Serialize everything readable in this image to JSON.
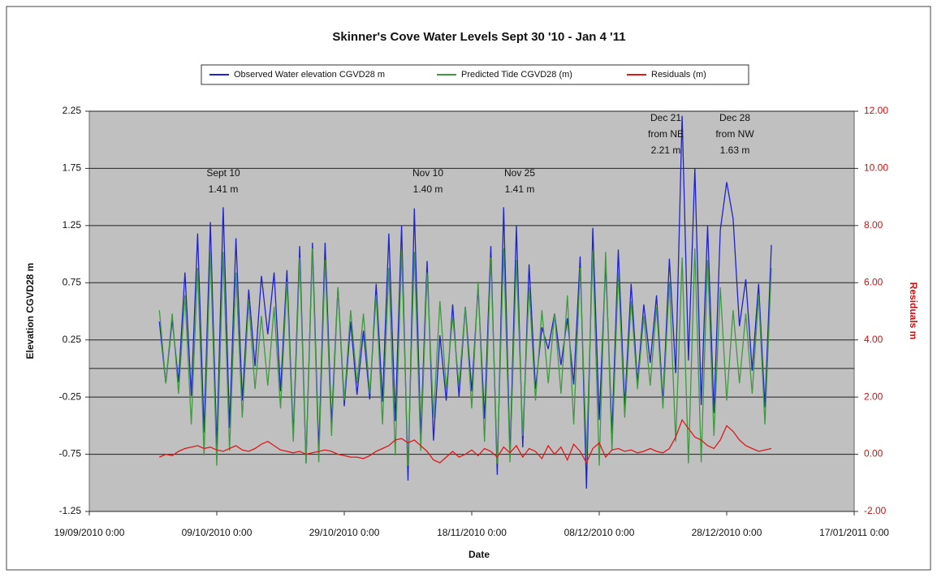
{
  "chart_data": {
    "type": "line",
    "title": "Skinner's Cove  Water Levels Sept 30 '10 - Jan 4 '11",
    "x_label": "Date",
    "y_label": "Elevation CGVD28 m",
    "y2_label": "Residuals m",
    "grid": true,
    "xlim": [
      "19/09/2010 0:00",
      "17/01/2011 0:00"
    ],
    "xticks": [
      "19/09/2010 0:00",
      "09/10/2010 0:00",
      "29/10/2010 0:00",
      "18/11/2010 0:00",
      "08/12/2010 0:00",
      "28/12/2010 0:00",
      "17/01/2011 0:00"
    ],
    "ylim": [
      -1.25,
      2.25
    ],
    "yticks": [
      -1.25,
      -0.75,
      -0.25,
      0.25,
      0.75,
      1.25,
      1.75,
      2.25
    ],
    "y2lim": [
      -2,
      12
    ],
    "y2ticks": [
      {
        "value": -2,
        "label": "-2.00"
      },
      {
        "value": 0,
        "label": "0.00"
      },
      {
        "value": 2,
        "label": "2.00"
      },
      {
        "value": 4,
        "label": "4.00"
      },
      {
        "value": 6,
        "label": "6.00"
      },
      {
        "value": 8,
        "label": "8.00"
      },
      {
        "value": 10,
        "label": "10.00"
      },
      {
        "value": 12,
        "label": "12.00"
      }
    ],
    "annotations": [
      [
        "Sept 10",
        "1.41 m"
      ],
      [
        "Nov 10",
        "1.40 m"
      ],
      [
        "Nov 25",
        "1.41 m"
      ],
      [
        "Dec 21",
        "from NE",
        "2.21 m"
      ],
      [
        "Dec 28",
        "from NW",
        "1.63 m"
      ]
    ],
    "x": [
      "30/09/2010 0:00",
      "01/10/2010 0:00",
      "02/10/2010 0:00",
      "03/10/2010 0:00",
      "04/10/2010 0:00",
      "05/10/2010 0:00",
      "06/10/2010 0:00",
      "07/10/2010 0:00",
      "08/10/2010 0:00",
      "09/10/2010 0:00",
      "10/10/2010 0:00",
      "11/10/2010 0:00",
      "12/10/2010 0:00",
      "13/10/2010 0:00",
      "14/10/2010 0:00",
      "15/10/2010 0:00",
      "16/10/2010 0:00",
      "17/10/2010 0:00",
      "18/10/2010 0:00",
      "19/10/2010 0:00",
      "20/10/2010 0:00",
      "21/10/2010 0:00",
      "22/10/2010 0:00",
      "23/10/2010 0:00",
      "24/10/2010 0:00",
      "25/10/2010 0:00",
      "26/10/2010 0:00",
      "27/10/2010 0:00",
      "28/10/2010 0:00",
      "29/10/2010 0:00",
      "30/10/2010 0:00",
      "31/10/2010 0:00",
      "01/11/2010 0:00",
      "02/11/2010 0:00",
      "03/11/2010 0:00",
      "04/11/2010 0:00",
      "05/11/2010 0:00",
      "06/11/2010 0:00",
      "07/11/2010 0:00",
      "08/11/2010 0:00",
      "09/11/2010 0:00",
      "10/11/2010 0:00",
      "11/11/2010 0:00",
      "12/11/2010 0:00",
      "13/11/2010 0:00",
      "14/11/2010 0:00",
      "15/11/2010 0:00",
      "16/11/2010 0:00",
      "17/11/2010 0:00",
      "18/11/2010 0:00",
      "19/11/2010 0:00",
      "20/11/2010 0:00",
      "21/11/2010 0:00",
      "22/11/2010 0:00",
      "23/11/2010 0:00",
      "24/11/2010 0:00",
      "25/11/2010 0:00",
      "26/11/2010 0:00",
      "27/11/2010 0:00",
      "28/11/2010 0:00",
      "29/11/2010 0:00",
      "30/11/2010 0:00",
      "01/12/2010 0:00",
      "02/12/2010 0:00",
      "03/12/2010 0:00",
      "04/12/2010 0:00",
      "05/12/2010 0:00",
      "06/12/2010 0:00",
      "07/12/2010 0:00",
      "08/12/2010 0:00",
      "09/12/2010 0:00",
      "10/12/2010 0:00",
      "11/12/2010 0:00",
      "12/12/2010 0:00",
      "13/12/2010 0:00",
      "14/12/2010 0:00",
      "15/12/2010 0:00",
      "16/12/2010 0:00",
      "17/12/2010 0:00",
      "18/12/2010 0:00",
      "19/12/2010 0:00",
      "20/12/2010 0:00",
      "21/12/2010 0:00",
      "22/12/2010 0:00",
      "23/12/2010 0:00",
      "24/12/2010 0:00",
      "25/12/2010 0:00",
      "26/12/2010 0:00",
      "27/12/2010 0:00",
      "28/12/2010 0:00",
      "29/12/2010 0:00",
      "30/12/2010 0:00",
      "31/12/2010 0:00",
      "01/01/2011 0:00",
      "02/01/2011 0:00",
      "03/01/2011 0:00",
      "04/01/2011 0:00"
    ],
    "series": [
      {
        "name": "Observed Water elevation CGVD28 m",
        "color": "#1e22d2",
        "values": [
          0.41,
          -0.13,
          0.43,
          -0.12,
          0.84,
          -0.24,
          1.18,
          -0.56,
          1.28,
          -0.7,
          1.41,
          -0.52,
          1.14,
          -0.28,
          0.69,
          0.02,
          0.81,
          0.3,
          0.84,
          -0.2,
          0.86,
          -0.59,
          1.07,
          -0.83,
          1.1,
          -0.72,
          1.1,
          -0.49,
          0.71,
          -0.33,
          0.41,
          -0.23,
          0.33,
          -0.27,
          0.74,
          -0.29,
          1.18,
          -0.46,
          1.25,
          -0.98,
          1.4,
          -0.6,
          0.94,
          -0.63,
          0.29,
          -0.28,
          0.56,
          -0.25,
          0.54,
          -0.2,
          0.71,
          -0.44,
          1.07,
          -0.93,
          1.41,
          -0.77,
          1.25,
          -0.69,
          0.91,
          -0.18,
          0.36,
          0.17,
          0.48,
          0.03,
          0.44,
          -0.14,
          0.98,
          -1.05,
          1.23,
          -0.45,
          0.92,
          -0.57,
          1.04,
          -0.33,
          0.74,
          -0.13,
          0.56,
          0.05,
          0.64,
          -0.3,
          0.96,
          -0.04,
          2.21,
          0.07,
          1.75,
          -0.32,
          1.25,
          -0.39,
          1.21,
          1.63,
          1.31,
          0.37,
          0.78,
          -0.02,
          0.74,
          -0.34,
          1.08
        ]
      },
      {
        "name": "Predicted Tide CGVD28 (m)",
        "color": "#3e9a3e",
        "values": [
          0.51,
          -0.13,
          0.48,
          -0.22,
          0.64,
          -0.49,
          0.88,
          -0.76,
          1.03,
          -0.85,
          1.02,
          -0.72,
          0.84,
          -0.43,
          0.59,
          -0.18,
          0.46,
          -0.15,
          0.54,
          -0.35,
          0.76,
          -0.64,
          0.97,
          -0.83,
          1.05,
          -0.82,
          0.95,
          -0.59,
          0.71,
          -0.28,
          0.51,
          -0.13,
          0.48,
          -0.22,
          0.64,
          -0.49,
          0.88,
          -0.76,
          1.03,
          -0.85,
          1.02,
          -0.72,
          0.84,
          -0.43,
          0.59,
          -0.18,
          0.46,
          -0.15,
          0.54,
          -0.35,
          0.76,
          -0.64,
          0.97,
          -0.83,
          1.05,
          -0.82,
          0.95,
          -0.59,
          0.71,
          -0.28,
          0.51,
          -0.13,
          0.48,
          -0.22,
          0.64,
          -0.49,
          0.88,
          -0.76,
          1.03,
          -0.85,
          1.02,
          -0.72,
          0.84,
          -0.43,
          0.59,
          -0.18,
          0.46,
          -0.15,
          0.54,
          -0.35,
          0.76,
          -0.64,
          0.97,
          -0.83,
          1.05,
          -0.82,
          0.95,
          -0.59,
          0.71,
          -0.28,
          0.51,
          -0.13,
          0.48,
          -0.22,
          0.64,
          -0.49,
          0.88
        ]
      },
      {
        "name": "Residuals (m)",
        "color": "#e01818",
        "axis": "y2",
        "values": [
          -0.1,
          0.0,
          -0.05,
          0.1,
          0.2,
          0.25,
          0.3,
          0.2,
          0.25,
          0.15,
          0.1,
          0.2,
          0.3,
          0.15,
          0.1,
          0.2,
          0.35,
          0.45,
          0.3,
          0.15,
          0.1,
          0.05,
          0.1,
          0.0,
          0.05,
          0.1,
          0.15,
          0.1,
          0.0,
          -0.05,
          -0.1,
          -0.1,
          -0.15,
          -0.05,
          0.1,
          0.2,
          0.3,
          0.5,
          0.55,
          0.4,
          0.5,
          0.3,
          0.1,
          -0.2,
          -0.3,
          -0.1,
          0.1,
          -0.1,
          0.0,
          0.15,
          -0.05,
          0.2,
          0.1,
          -0.1,
          0.25,
          0.05,
          0.3,
          -0.1,
          0.2,
          0.1,
          -0.15,
          0.3,
          0.0,
          0.25,
          -0.2,
          0.35,
          0.1,
          -0.3,
          0.2,
          0.4,
          -0.1,
          0.15,
          0.2,
          0.1,
          0.15,
          0.05,
          0.1,
          0.2,
          0.1,
          0.05,
          0.2,
          0.6,
          1.2,
          0.9,
          0.6,
          0.5,
          0.3,
          0.2,
          0.5,
          1.0,
          0.8,
          0.5,
          0.3,
          0.2,
          0.1,
          0.15,
          0.2
        ]
      }
    ]
  }
}
